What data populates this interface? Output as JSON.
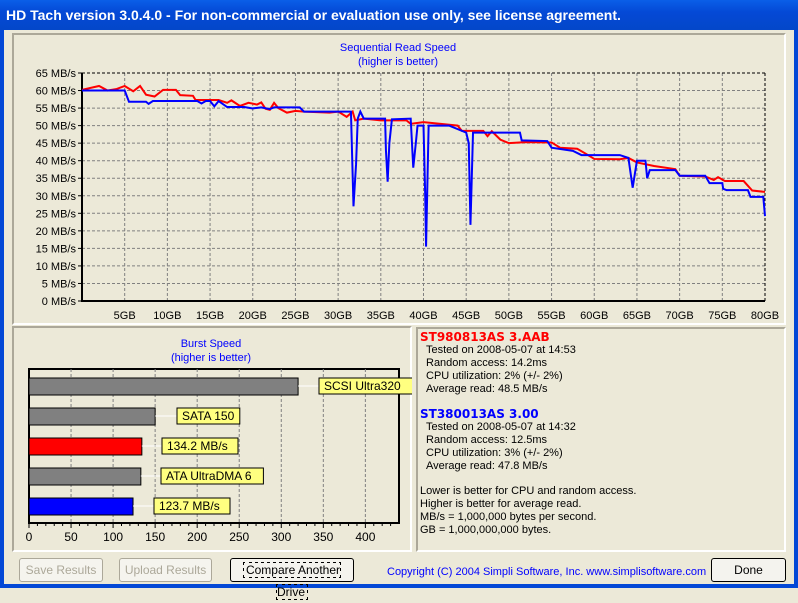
{
  "window": {
    "title": "HD Tach version 3.0.4.0  - For non-commercial or evaluation use only, see license agreement."
  },
  "chart_data": [
    {
      "type": "line",
      "title": "Sequential Read Speed",
      "subtitle": "(higher is better)",
      "xlim": [
        0,
        80
      ],
      "ylim": [
        0,
        65
      ],
      "x_ticks": [
        "5GB",
        "10GB",
        "15GB",
        "20GB",
        "25GB",
        "30GB",
        "35GB",
        "40GB",
        "45GB",
        "50GB",
        "55GB",
        "60GB",
        "65GB",
        "70GB",
        "75GB",
        "80GB"
      ],
      "y_ticks": [
        "0 MB/s",
        "5 MB/s",
        "10 MB/s",
        "15 MB/s",
        "20 MB/s",
        "25 MB/s",
        "30 MB/s",
        "35 MB/s",
        "40 MB/s",
        "45 MB/s",
        "50 MB/s",
        "55 MB/s",
        "60 MB/s",
        "65 MB/s"
      ],
      "grid": true,
      "series": [
        {
          "color": "#ff0000",
          "points": [
            [
              0,
              60.2
            ],
            [
              2,
              61.3
            ],
            [
              3,
              60
            ],
            [
              4,
              60.4
            ],
            [
              5,
              61.3
            ],
            [
              6,
              59.8
            ],
            [
              6.8,
              61.3
            ],
            [
              7.5,
              58.8
            ],
            [
              8.5,
              58.3
            ],
            [
              9.5,
              60.2
            ],
            [
              11,
              60.2
            ],
            [
              11.5,
              58.7
            ],
            [
              13,
              58.5
            ],
            [
              13.3,
              57.3
            ],
            [
              16,
              57.3
            ],
            [
              17,
              56.5
            ],
            [
              17.5,
              57.2
            ],
            [
              18.5,
              55.6
            ],
            [
              19.5,
              56.5
            ],
            [
              20.5,
              56
            ],
            [
              21,
              56.6
            ],
            [
              21.5,
              54.8
            ],
            [
              22,
              54.5
            ],
            [
              22.5,
              56.5
            ],
            [
              23,
              55
            ],
            [
              24,
              53.7
            ],
            [
              25,
              54.2
            ],
            [
              26,
              54
            ],
            [
              29,
              53.7
            ],
            [
              30,
              54
            ],
            [
              31,
              52.5
            ],
            [
              31.7,
              54
            ],
            [
              32,
              51.5
            ],
            [
              33,
              52
            ],
            [
              35,
              51.5
            ],
            [
              38,
              51.5
            ],
            [
              38.5,
              50.5
            ],
            [
              40,
              51
            ],
            [
              44,
              50
            ],
            [
              44.5,
              48.5
            ],
            [
              47,
              48.5
            ],
            [
              47.5,
              47
            ],
            [
              48,
              48.4
            ],
            [
              49,
              46
            ],
            [
              50,
              45
            ],
            [
              52,
              45.3
            ],
            [
              55,
              45.2
            ],
            [
              56,
              43.7
            ],
            [
              58,
              43.4
            ],
            [
              59,
              42
            ],
            [
              60,
              40.5
            ],
            [
              63,
              40.4
            ],
            [
              64,
              40.8
            ],
            [
              65,
              39.5
            ],
            [
              67,
              38.5
            ],
            [
              69.5,
              37.6
            ],
            [
              70,
              35.7
            ],
            [
              73,
              35.5
            ],
            [
              74,
              34.5
            ],
            [
              74.5,
              35.3
            ],
            [
              75.3,
              34.2
            ],
            [
              77.5,
              34.2
            ],
            [
              78.5,
              31.5
            ],
            [
              80,
              31.1
            ]
          ]
        },
        {
          "color": "#0000ff",
          "points": [
            [
              0,
              60
            ],
            [
              5,
              60
            ],
            [
              5.5,
              56.8
            ],
            [
              7.5,
              56.8
            ],
            [
              7.8,
              56.2
            ],
            [
              8.3,
              57
            ],
            [
              12.5,
              57
            ],
            [
              13.5,
              57
            ],
            [
              14,
              56.3
            ],
            [
              14.5,
              57
            ],
            [
              15,
              57
            ],
            [
              15.5,
              55.5
            ],
            [
              16,
              57
            ],
            [
              17,
              55.3
            ],
            [
              19,
              55.3
            ],
            [
              20,
              54.9
            ],
            [
              21,
              55.2
            ],
            [
              22,
              54.7
            ],
            [
              22.5,
              55.2
            ],
            [
              25.5,
              55.2
            ],
            [
              26,
              54
            ],
            [
              30,
              54
            ],
            [
              31.5,
              54
            ],
            [
              31.7,
              36
            ],
            [
              31.8,
              27
            ],
            [
              32.1,
              39
            ],
            [
              32.3,
              52
            ],
            [
              32.6,
              54
            ],
            [
              33,
              52
            ],
            [
              35.5,
              52
            ],
            [
              35.6,
              43
            ],
            [
              35.8,
              34
            ],
            [
              36,
              45
            ],
            [
              36.3,
              51.8
            ],
            [
              38.5,
              52
            ],
            [
              38.8,
              38
            ],
            [
              39.1,
              45
            ],
            [
              39.3,
              50
            ],
            [
              40,
              50
            ],
            [
              40.2,
              30
            ],
            [
              40.3,
              15.5
            ],
            [
              40.6,
              50
            ],
            [
              43,
              50
            ],
            [
              44,
              49
            ],
            [
              45,
              48
            ],
            [
              45.3,
              45
            ],
            [
              45.5,
              21.7
            ],
            [
              45.8,
              48
            ],
            [
              50,
              48
            ],
            [
              51.3,
              48
            ],
            [
              51.5,
              45.8
            ],
            [
              54.5,
              45.6
            ],
            [
              55,
              43.7
            ],
            [
              57.5,
              42.8
            ],
            [
              58.5,
              41.6
            ],
            [
              63,
              41.6
            ],
            [
              64,
              40.8
            ],
            [
              64.5,
              32.3
            ],
            [
              65,
              40
            ],
            [
              66,
              40
            ],
            [
              66.2,
              35
            ],
            [
              66.5,
              37.3
            ],
            [
              69.5,
              37.3
            ],
            [
              70,
              35.7
            ],
            [
              73,
              35.7
            ],
            [
              73.5,
              33.6
            ],
            [
              75,
              33.6
            ],
            [
              75.1,
              32
            ],
            [
              75.5,
              31.6
            ],
            [
              78,
              31.6
            ],
            [
              78.3,
              29.7
            ],
            [
              79.8,
              29.7
            ],
            [
              80,
              24.2
            ]
          ]
        }
      ]
    },
    {
      "type": "bar",
      "title": "Burst Speed",
      "subtitle": "(higher is better)",
      "xlim": [
        0,
        440
      ],
      "x_ticks": [
        "0",
        "50",
        "100",
        "150",
        "200",
        "250",
        "300",
        "350",
        "400"
      ],
      "grid": true,
      "bars": [
        {
          "label": "SCSI Ultra320",
          "value": 320,
          "color": "#808080"
        },
        {
          "label": "SATA 150",
          "value": 150,
          "color": "#808080"
        },
        {
          "label": "134.2 MB/s",
          "value": 134.2,
          "color": "#ff0000"
        },
        {
          "label": "ATA UltraDMA 6",
          "value": 133,
          "color": "#808080"
        },
        {
          "label": "123.7 MB/s",
          "value": 123.7,
          "color": "#0000ff"
        }
      ]
    }
  ],
  "drives": [
    {
      "name": "ST980813AS 3.AAB",
      "color": "#ff0000",
      "tested": "Tested on 2008-05-07 at 14:53",
      "random": "Random access: 14.2ms",
      "cpu": "CPU utilization: 2% (+/- 2%)",
      "avg": "Average read: 48.5 MB/s"
    },
    {
      "name": "ST380013AS 3.00",
      "color": "#0000ff",
      "tested": "Tested on 2008-05-07 at 14:32",
      "random": "Random access: 12.5ms",
      "cpu": "CPU utilization: 3% (+/- 2%)",
      "avg": "Average read: 47.8 MB/s"
    }
  ],
  "notes": [
    "Lower is better for CPU and random access.",
    "Higher is better for average read.",
    "MB/s = 1,000,000 bytes per second.",
    "GB = 1,000,000,000 bytes."
  ],
  "buttons": {
    "save": "Save Results",
    "upload": "Upload Results",
    "compare": "Compare Another Drive",
    "done": "Done"
  },
  "copyright": "Copyright (C) 2004 Simpli Software, Inc. www.simplisoftware.com"
}
